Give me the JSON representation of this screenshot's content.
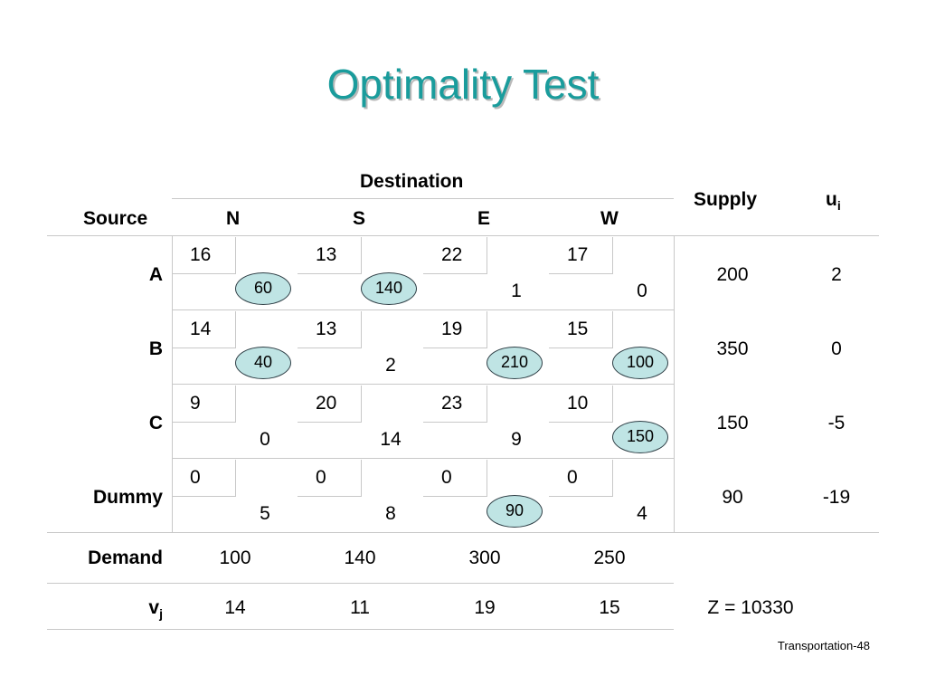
{
  "title": "Optimality Test",
  "headers": {
    "destination": "Destination",
    "source": "Source",
    "supply": "Supply",
    "u_base": "u",
    "u_sub": "i",
    "cols": [
      "N",
      "S",
      "E",
      "W"
    ]
  },
  "rows": [
    {
      "label": "A",
      "supply": "200",
      "u": "2",
      "cells": [
        {
          "cost": "16",
          "alloc": "60",
          "alloc_shown": true
        },
        {
          "cost": "13",
          "alloc": "140",
          "alloc_shown": true
        },
        {
          "cost": "22",
          "reduced": "1"
        },
        {
          "cost": "17",
          "reduced": "0"
        }
      ]
    },
    {
      "label": "B",
      "supply": "350",
      "u": "0",
      "cells": [
        {
          "cost": "14",
          "alloc": "40",
          "alloc_shown": true
        },
        {
          "cost": "13",
          "reduced": "2"
        },
        {
          "cost": "19",
          "alloc": "210",
          "alloc_shown": true
        },
        {
          "cost": "15",
          "alloc": "100",
          "alloc_shown": true
        }
      ]
    },
    {
      "label": "C",
      "supply": "150",
      "u": "-5",
      "cells": [
        {
          "cost": "9",
          "reduced": "0"
        },
        {
          "cost": "20",
          "reduced": "14"
        },
        {
          "cost": "23",
          "reduced": "9"
        },
        {
          "cost": "10",
          "alloc": "150",
          "alloc_shown": true
        }
      ]
    },
    {
      "label": "Dummy",
      "supply": "90",
      "u": "-19",
      "cells": [
        {
          "cost": "0",
          "reduced": "5"
        },
        {
          "cost": "0",
          "reduced": "8"
        },
        {
          "cost": "0",
          "alloc": "90",
          "alloc_shown": true
        },
        {
          "cost": "0",
          "reduced": "4"
        }
      ]
    }
  ],
  "demand": {
    "label": "Demand",
    "values": [
      "100",
      "140",
      "300",
      "250"
    ]
  },
  "vj": {
    "label_base": "v",
    "label_sub": "j",
    "values": [
      "14",
      "11",
      "19",
      "15"
    ]
  },
  "z": "Z = 10330",
  "footer": "Transportation-48",
  "colors": {
    "title": "#1a9c9c",
    "ellipse_fill": "#bfe4e4",
    "grid": "#c8c8c8"
  }
}
